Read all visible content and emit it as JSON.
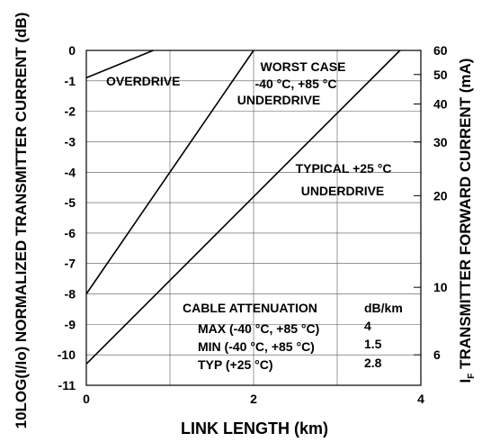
{
  "chart_data": {
    "type": "line",
    "xlabel": "LINK LENGTH (km)",
    "ylabel_left": "10LOG(I/Io) NORMALIZED TRANSMITTER CURRENT (dB)",
    "ylabel_right_main": "I",
    "ylabel_right_sub": "F",
    "ylabel_right_rest": " TRANSMITTER FORWARD CURRENT (mA)",
    "xlim": [
      0,
      4
    ],
    "ylim": [
      -11,
      0
    ],
    "x_ticks": [
      "0",
      "2",
      "4"
    ],
    "y_ticks": [
      "0",
      "-1",
      "-2",
      "-3",
      "-4",
      "-5",
      "-6",
      "-7",
      "-8",
      "-9",
      "-10",
      "-11"
    ],
    "right_ticks": [
      {
        "label": "60",
        "value": 60
      },
      {
        "label": "50",
        "value": 50
      },
      {
        "label": "40",
        "value": 40
      },
      {
        "label": "30",
        "value": 30
      },
      {
        "label": "20",
        "value": 20
      },
      {
        "label": "10",
        "value": 10
      },
      {
        "label": "6",
        "value": 6
      }
    ],
    "right_ref_ma": 60,
    "grid": true,
    "series": [
      {
        "id": "overdrive",
        "x": [
          0,
          0.8
        ],
        "y": [
          -0.9,
          0
        ]
      },
      {
        "id": "worst-case",
        "x": [
          0,
          2.0
        ],
        "y": [
          -8,
          0
        ]
      },
      {
        "id": "typical",
        "x": [
          0,
          3.75
        ],
        "y": [
          -10.3,
          0
        ]
      }
    ],
    "annotations": {
      "overdrive": "OVERDRIVE",
      "worst_case_1": "WORST CASE",
      "worst_case_2": "-40 °C, +85 °C",
      "worst_case_3": "UNDERDRIVE",
      "typical_1": "TYPICAL +25 °C",
      "typical_2": "UNDERDRIVE"
    },
    "table": {
      "header": "CABLE ATTENUATION",
      "unit": "dB/km",
      "rows": [
        {
          "label": "MAX (-40 °C, +85 °C)",
          "value": "4"
        },
        {
          "label": "MIN (-40 °C, +85 °C)",
          "value": "1.5"
        },
        {
          "label": "TYP (+25 °C)",
          "value": "2.8"
        }
      ]
    }
  }
}
